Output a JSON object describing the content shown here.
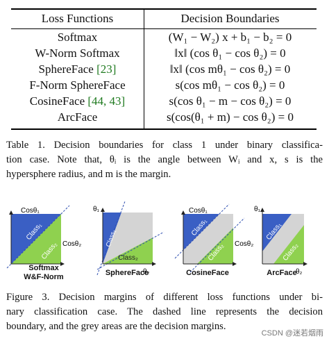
{
  "table": {
    "headers": [
      "Loss Functions",
      "Decision Boundaries"
    ],
    "rows": [
      {
        "loss": "Softmax",
        "cite": "",
        "boundary": "(W₁ − W₂) x + b₁ − b₂ = 0"
      },
      {
        "loss": "W-Norm Softmax",
        "cite": "",
        "boundary": "‖x‖ (cos θ₁ − cos θ₂) = 0"
      },
      {
        "loss": "SphereFace ",
        "cite": "[23]",
        "boundary": "‖x‖ (cos mθ₁ − cos θ₂) = 0"
      },
      {
        "loss": "F-Norm SphereFace",
        "cite": "",
        "boundary": "s(cos mθ₁ − cos θ₂) = 0"
      },
      {
        "loss": "CosineFace ",
        "cite": "[44, 43]",
        "boundary": "s(cos θ₁ − m − cos θ₂) = 0"
      },
      {
        "loss": "ArcFace",
        "cite": "",
        "boundary": "s(cos(θ₁ + m) − cos θ₂) = 0"
      }
    ]
  },
  "table_caption": [
    "Table 1. Decision boundaries for class 1 under binary classifica-",
    "tion case. Note that, θᵢ is the angle between Wᵢ and x, s is the",
    "hypersphere radius, and m is the margin."
  ],
  "figure": {
    "colors": {
      "class1": "#3a5fc4",
      "class2": "#8fd14f",
      "margin": "#d4d4d4",
      "dash": "#2f4fb0"
    },
    "panels": [
      {
        "label": "Softmax",
        "label2": "W&F-Norm",
        "xaxis": "Cosθ₂",
        "yaxis": "Cosθ₁",
        "class1": "Class₁",
        "class2": "Class₂"
      },
      {
        "label": "SphereFace",
        "label2": "",
        "xaxis": "θ₂",
        "yaxis": "θ₁",
        "class1": "Class₁",
        "class2": "Class₂"
      },
      {
        "label": "CosineFace",
        "label2": "",
        "xaxis": "Cosθ₂",
        "yaxis": "Cosθ₁",
        "class1": "Class₁",
        "class2": "Class₂"
      },
      {
        "label": "ArcFace",
        "label2": "",
        "xaxis": "θ₂",
        "yaxis": "θ₁",
        "class1": "Class₁",
        "class2": "Class₂"
      }
    ]
  },
  "figure_caption": [
    "Figure 3. Decision margins of different loss functions under bi-",
    "nary classification case. The dashed line represents the decision",
    "boundary, and the grey areas are the decision margins."
  ],
  "watermark": "CSDN @迷若烟雨"
}
